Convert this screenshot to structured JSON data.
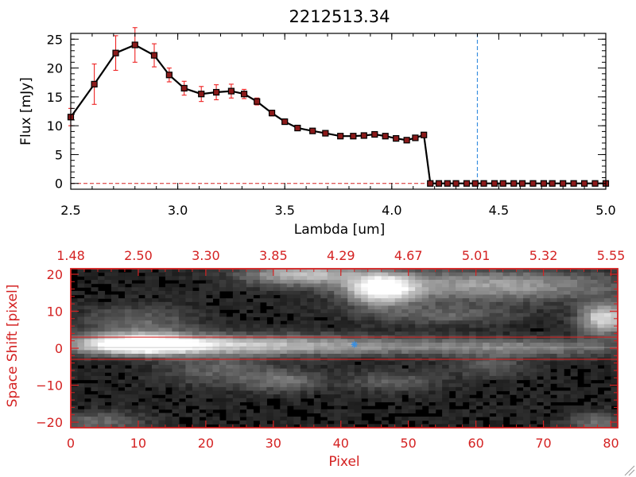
{
  "title": "2212513.34",
  "colors": {
    "axis_black": "#000000",
    "accent_red": "#d42222",
    "errbar_red": "#ee2222",
    "marker_fill": "#8b1a1a",
    "dashed_blue": "#3a8fe0",
    "star_blue": "#3a8fe0"
  },
  "chart_data": [
    {
      "type": "line",
      "title": "2212513.34",
      "xlabel": "Lambda [um]",
      "ylabel": "Flux [mJy]",
      "xlim": [
        2.5,
        5.0
      ],
      "ylim": [
        -1,
        26
      ],
      "xticks": [
        2.5,
        3.0,
        3.5,
        4.0,
        4.5,
        5.0
      ],
      "xtick_labels": [
        "2.5",
        "3.0",
        "3.5",
        "4.0",
        "4.5",
        "5.0"
      ],
      "yticks": [
        0,
        5,
        10,
        15,
        20,
        25
      ],
      "ytick_labels": [
        "0",
        "5",
        "10",
        "15",
        "20",
        "25"
      ],
      "vline_x": 4.4,
      "series": [
        {
          "name": "flux",
          "x": [
            2.5,
            2.61,
            2.71,
            2.8,
            2.89,
            2.96,
            3.03,
            3.11,
            3.18,
            3.25,
            3.31,
            3.37,
            3.44,
            3.5,
            3.56,
            3.63,
            3.69,
            3.76,
            3.82,
            3.87,
            3.92,
            3.97,
            4.02,
            4.07,
            4.11,
            4.15,
            4.18,
            4.22,
            4.26,
            4.3,
            4.35,
            4.39,
            4.43,
            4.48,
            4.52,
            4.57,
            4.61,
            4.66,
            4.71,
            4.75,
            4.8,
            4.85,
            4.9,
            4.95,
            5.0
          ],
          "y": [
            11.5,
            17.2,
            22.6,
            24.0,
            22.2,
            18.8,
            16.5,
            15.5,
            15.8,
            16.0,
            15.5,
            14.2,
            12.2,
            10.7,
            9.6,
            9.1,
            8.7,
            8.2,
            8.2,
            8.3,
            8.5,
            8.2,
            7.8,
            7.5,
            7.9,
            8.4,
            0,
            0,
            0,
            0,
            0,
            0,
            0,
            0,
            0,
            0,
            0,
            0,
            0,
            0,
            0,
            0,
            0,
            0,
            0
          ],
          "yerr": [
            1.5,
            3.5,
            3.0,
            3.0,
            2.0,
            1.2,
            1.2,
            1.3,
            1.3,
            1.2,
            0.8,
            0.6,
            0.5,
            0.4,
            0.4,
            0.3,
            0.3,
            0.3,
            0.3,
            0.3,
            0.3,
            0.3,
            0.3,
            0.3,
            0.3,
            0.3,
            0,
            0,
            0,
            0,
            0,
            0,
            0,
            0,
            0,
            0,
            0,
            0,
            0,
            0,
            0,
            0,
            0,
            0,
            0
          ]
        }
      ]
    },
    {
      "type": "heatmap",
      "xlabel": "Pixel",
      "ylabel": "Space Shift [pixel]",
      "xlim": [
        0,
        81
      ],
      "ylim": [
        -21.5,
        21.5
      ],
      "xticks": [
        0,
        10,
        20,
        30,
        40,
        50,
        60,
        70,
        80
      ],
      "xtick_labels": [
        "0",
        "10",
        "20",
        "30",
        "40",
        "50",
        "60",
        "70",
        "80"
      ],
      "yticks": [
        -20,
        -10,
        0,
        10,
        20
      ],
      "ytick_labels": [
        "−20",
        "−10",
        "0",
        "10",
        "20"
      ],
      "top_axis_label_positions": [
        0,
        10,
        20,
        30,
        40,
        50,
        60,
        70,
        80
      ],
      "top_axis_labels": [
        "1.48",
        "2.50",
        "3.30",
        "3.85",
        "4.29",
        "4.67",
        "5.01",
        "5.32",
        "5.55"
      ],
      "extraction_window_rows": [
        -3,
        3
      ],
      "marker": {
        "x": 42,
        "y": 1
      },
      "blobs": [
        {
          "x": 10,
          "y": 1,
          "sx": 6,
          "sy": 1.8,
          "a": 1.0
        },
        {
          "x": 22,
          "y": 1,
          "sx": 14,
          "sy": 2.0,
          "a": 0.45
        },
        {
          "x": 45,
          "y": 0.5,
          "sx": 20,
          "sy": 1.8,
          "a": 0.32
        },
        {
          "x": 70,
          "y": 0,
          "sx": 10,
          "sy": 1.8,
          "a": 0.22
        },
        {
          "x": 46,
          "y": 16,
          "sx": 3.5,
          "sy": 3,
          "a": 0.85
        },
        {
          "x": 62,
          "y": 17,
          "sx": 14,
          "sy": 3,
          "a": 0.5
        },
        {
          "x": 34,
          "y": 20,
          "sx": 6,
          "sy": 2,
          "a": 0.6
        },
        {
          "x": 79,
          "y": 8,
          "sx": 2.5,
          "sy": 3,
          "a": 0.75
        },
        {
          "x": 10,
          "y": 7,
          "sx": 6,
          "sy": 3,
          "a": 0.28
        },
        {
          "x": 22,
          "y": -6,
          "sx": 6,
          "sy": 3,
          "a": 0.25
        },
        {
          "x": 32,
          "y": -9,
          "sx": 4,
          "sy": 2,
          "a": 0.3
        },
        {
          "x": 48,
          "y": -9,
          "sx": 5,
          "sy": 2,
          "a": 0.25
        },
        {
          "x": 62,
          "y": -5,
          "sx": 4,
          "sy": 2,
          "a": 0.22
        },
        {
          "x": 4,
          "y": -20,
          "sx": 5,
          "sy": 2,
          "a": 0.28
        },
        {
          "x": 78,
          "y": -20,
          "sx": 3,
          "sy": 2,
          "a": 0.3
        },
        {
          "x": 55,
          "y": 9,
          "sx": 8,
          "sy": 2,
          "a": 0.25
        }
      ]
    }
  ]
}
